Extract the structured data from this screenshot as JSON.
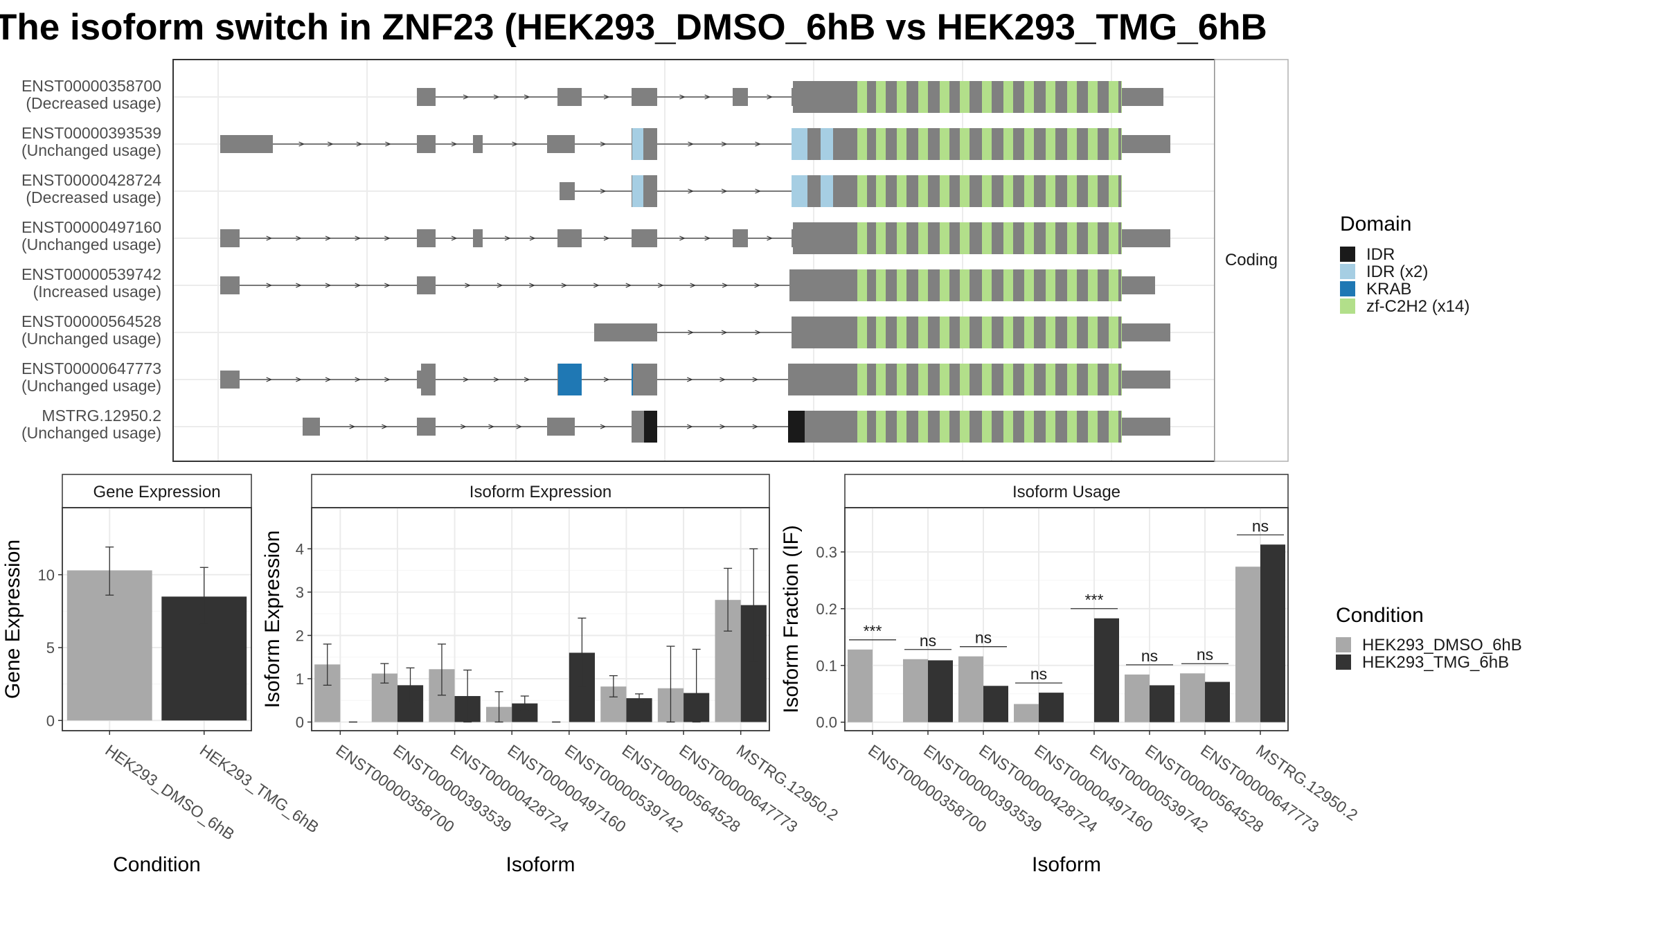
{
  "title": "The isoform switch in ZNF23 (HEK293_DMSO_6hB vs HEK293_TMG_6hB",
  "structure_panel": {
    "strip_label": "Coding",
    "isoforms": [
      {
        "id": "ENST00000358700",
        "usage": "(Decreased usage)"
      },
      {
        "id": "ENST00000393539",
        "usage": "(Unchanged usage)"
      },
      {
        "id": "ENST00000428724",
        "usage": "(Decreased usage)"
      },
      {
        "id": "ENST00000497160",
        "usage": "(Unchanged usage)"
      },
      {
        "id": "ENST00000539742",
        "usage": "(Increased usage)"
      },
      {
        "id": "ENST00000564528",
        "usage": "(Unchanged usage)"
      },
      {
        "id": "ENST00000647773",
        "usage": "(Unchanged usage)"
      },
      {
        "id": "MSTRG.12950.2",
        "usage": "(Unchanged usage)"
      }
    ]
  },
  "domain_legend": {
    "title": "Domain",
    "items": [
      {
        "label": "IDR",
        "color": "#1a1a1a"
      },
      {
        "label": "IDR (x2)",
        "color": "#a6cee3"
      },
      {
        "label": "KRAB",
        "color": "#1f78b4"
      },
      {
        "label": "zf-C2H2 (x14)",
        "color": "#b2df8a"
      }
    ]
  },
  "condition_legend": {
    "title": "Condition",
    "items": [
      {
        "label": "HEK293_DMSO_6hB",
        "color": "#a9a9a9"
      },
      {
        "label": "HEK293_TMG_6hB",
        "color": "#333333"
      }
    ]
  },
  "chart_data": [
    {
      "type": "bar",
      "panel_title": "Gene Expression",
      "xlabel": "Condition",
      "ylabel": "Gene Expression",
      "ylim": [
        -0.7,
        14.6
      ],
      "yticks": [
        0,
        5,
        10
      ],
      "categories": [
        "HEK293_DMSO_6hB",
        "HEK293_TMG_6hB"
      ],
      "values": [
        10.3,
        8.5
      ],
      "error_low": [
        8.6,
        6.6
      ],
      "error_high": [
        11.9,
        10.5
      ],
      "grid": true
    },
    {
      "type": "bar",
      "panel_title": "Isoform Expression",
      "xlabel": "Isoform",
      "ylabel": "Isoform Expression",
      "ylim": [
        -0.2,
        4.95
      ],
      "yticks": [
        0,
        1,
        2,
        3,
        4
      ],
      "categories": [
        "ENST00000358700",
        "ENST00000393539",
        "ENST00000428724",
        "ENST00000497160",
        "ENST00000539742",
        "ENST00000564528",
        "ENST00000647773",
        "MSTRG.12950.2"
      ],
      "series": [
        {
          "name": "HEK293_DMSO_6hB",
          "values": [
            1.33,
            1.12,
            1.22,
            0.35,
            0.0,
            0.82,
            0.78,
            2.82
          ],
          "error_low": [
            0.85,
            0.9,
            0.62,
            0.0,
            0.0,
            0.58,
            0.0,
            2.1
          ],
          "error_high": [
            1.8,
            1.35,
            1.8,
            0.7,
            0.0,
            1.07,
            1.75,
            3.55
          ]
        },
        {
          "name": "HEK293_TMG_6hB",
          "values": [
            0.0,
            0.85,
            0.6,
            0.43,
            1.6,
            0.55,
            0.67,
            2.7
          ],
          "error_low": [
            0.0,
            0.45,
            0.0,
            0.27,
            0.8,
            0.45,
            0.0,
            1.4
          ],
          "error_high": [
            0.0,
            1.25,
            1.2,
            0.6,
            2.4,
            0.65,
            1.68,
            4.0
          ]
        }
      ],
      "grid": true
    },
    {
      "type": "bar",
      "panel_title": "Isoform Usage",
      "xlabel": "Isoform",
      "ylabel": "Isoform Fraction (IF)",
      "ylim": [
        -0.015,
        0.378
      ],
      "yticks": [
        0.0,
        0.1,
        0.2,
        0.3
      ],
      "ytick_labels": [
        "0.0",
        "0.1",
        "0.2",
        "0.3"
      ],
      "categories": [
        "ENST00000358700",
        "ENST00000393539",
        "ENST00000428724",
        "ENST00000497160",
        "ENST00000539742",
        "ENST00000564528",
        "ENST00000647773",
        "MSTRG.12950.2"
      ],
      "series": [
        {
          "name": "HEK293_DMSO_6hB",
          "values": [
            0.128,
            0.111,
            0.116,
            0.032,
            0.0,
            0.084,
            0.086,
            0.274
          ]
        },
        {
          "name": "HEK293_TMG_6hB",
          "values": [
            0.0,
            0.109,
            0.064,
            0.052,
            0.183,
            0.065,
            0.071,
            0.313
          ]
        }
      ],
      "significance": [
        "***",
        "ns",
        "ns",
        "ns",
        "***",
        "ns",
        "ns",
        "ns"
      ],
      "grid": true
    }
  ]
}
